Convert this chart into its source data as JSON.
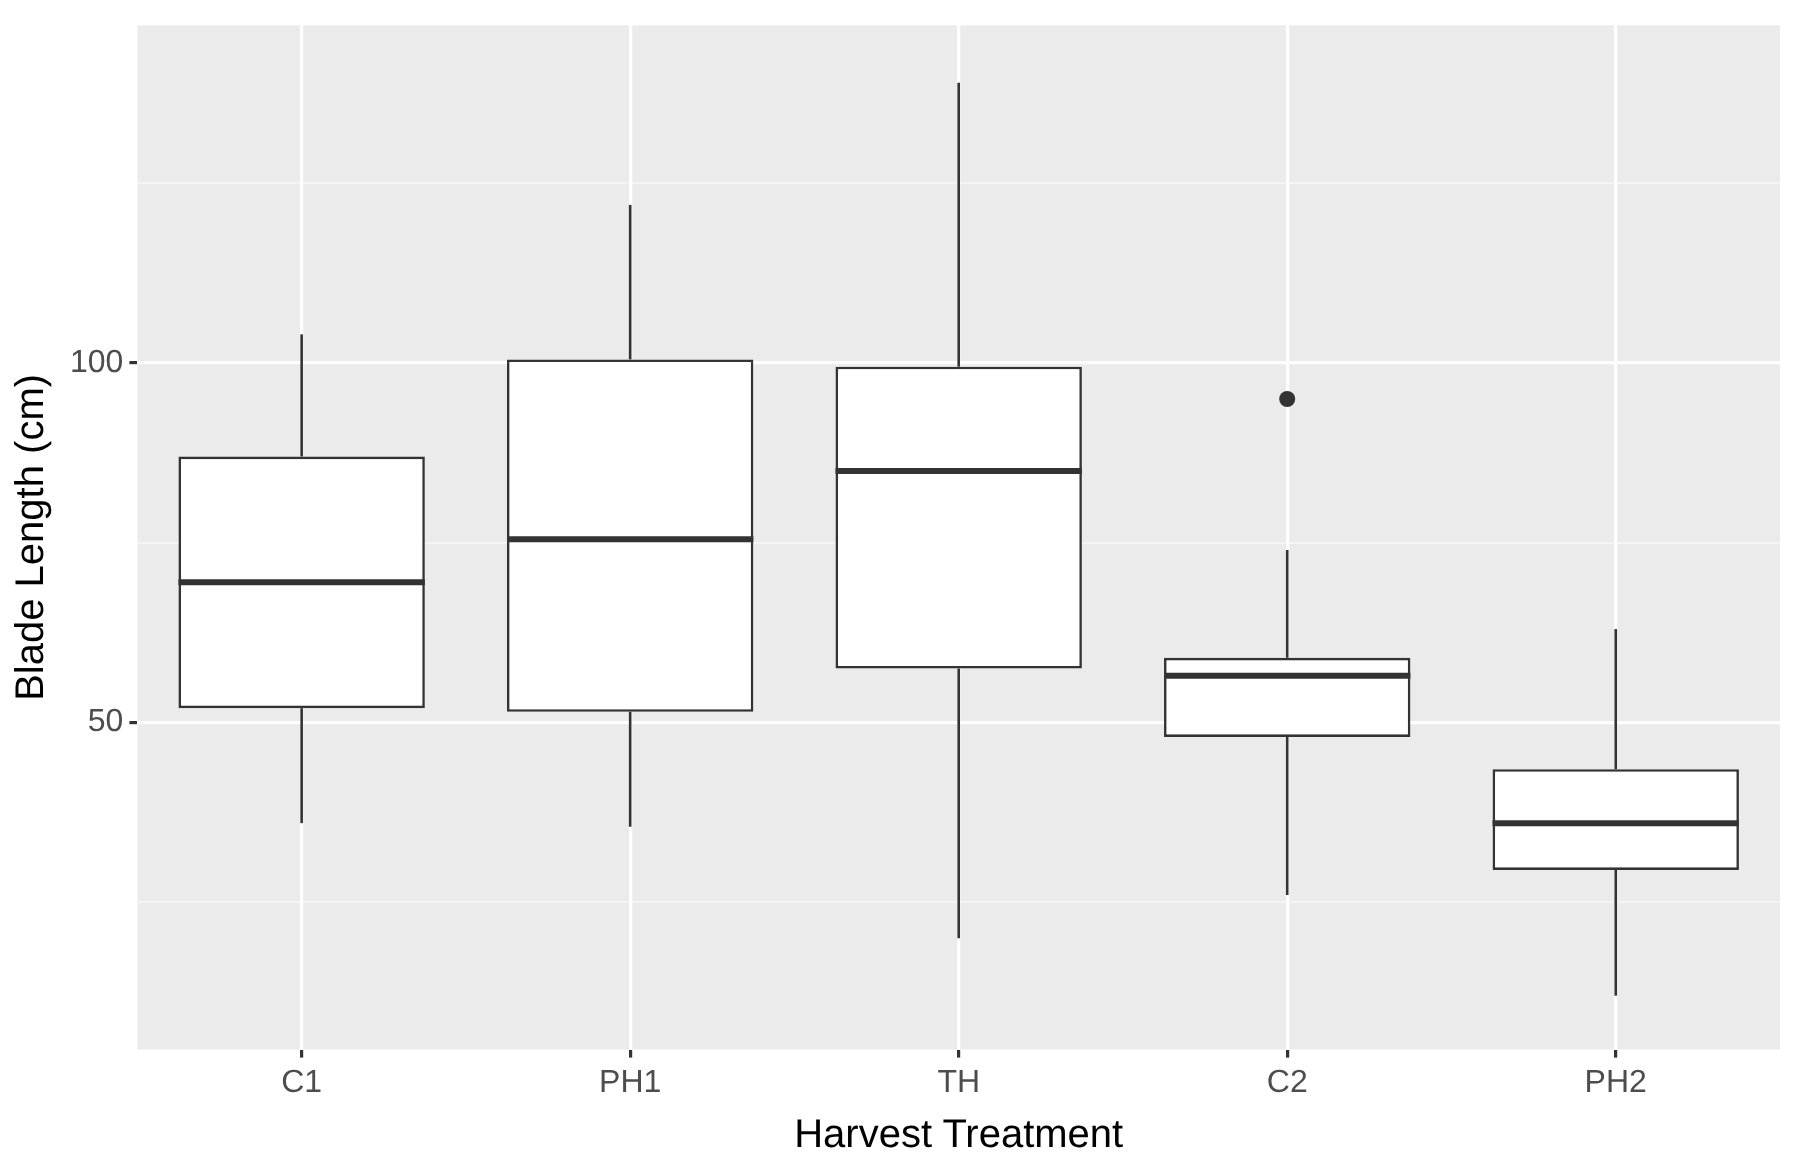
{
  "chart_data": {
    "type": "box",
    "xlabel": "Harvest Treatment",
    "ylabel": "Blade Length (cm)",
    "categories": [
      "C1",
      "PH1",
      "TH",
      "C2",
      "PH2"
    ],
    "boxes": [
      {
        "low": 36,
        "q1": 52,
        "median": 69.5,
        "q3": 87,
        "high": 104
      },
      {
        "low": 35.5,
        "q1": 51.5,
        "median": 75.5,
        "q3": 100.5,
        "high": 122
      },
      {
        "low": 20,
        "q1": 57.5,
        "median": 85,
        "q3": 99.5,
        "high": 139
      },
      {
        "low": 26,
        "q1": 48,
        "median": 56.5,
        "q3": 59,
        "high": 74,
        "outliers": [
          95
        ]
      },
      {
        "low": 12,
        "q1": 29.5,
        "median": 36,
        "q3": 43.5,
        "high": 63
      }
    ],
    "color": "#333333",
    "ylim": [
      4.5,
      147
    ],
    "yticks": [
      {
        "value": 25,
        "label": null
      },
      50,
      {
        "value": 75,
        "label": null
      },
      100,
      {
        "value": 125,
        "label": null
      }
    ],
    "grid": true,
    "legend": false
  }
}
